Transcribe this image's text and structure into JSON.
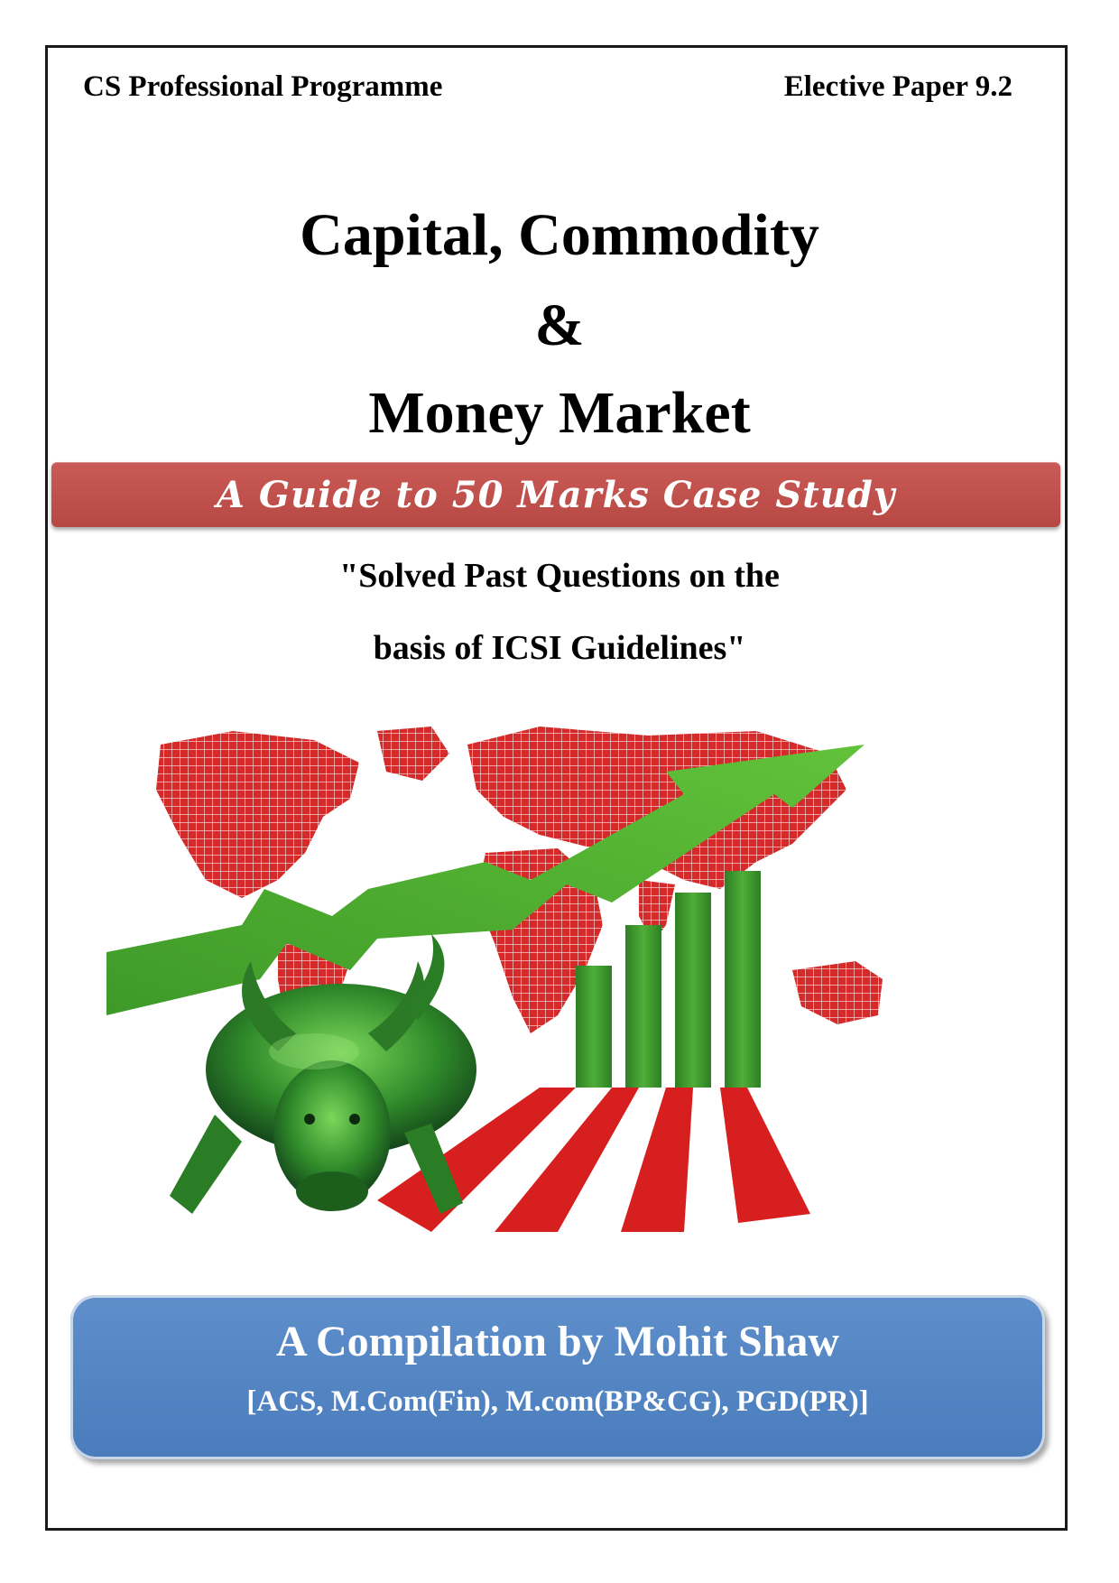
{
  "header": {
    "left": "CS Professional Programme",
    "right": "Elective Paper 9.2"
  },
  "title": {
    "line1": "Capital, Commodity",
    "line2": "&",
    "line3": "Money Market"
  },
  "banner": {
    "text": "A Guide to 50 Marks Case Study"
  },
  "subtitle": {
    "line1": "\"Solved Past Questions on the",
    "line2": "basis of  ICSI Guidelines\""
  },
  "illustration": {
    "map_color": "#d42a2a",
    "arrow_color": "#4aa52e",
    "bar_color": "#3f9a2f",
    "bull_color": "#2f8a2a",
    "bar_levels": [
      0.45,
      0.6,
      0.72,
      0.8
    ]
  },
  "author": {
    "name": "A Compilation by Mohit Shaw",
    "credentials": "[ACS, M.Com(Fin), M.com(BP&CG), PGD(PR)]"
  },
  "colors": {
    "banner": "#c0504d",
    "author_box": "#4f81bd"
  }
}
